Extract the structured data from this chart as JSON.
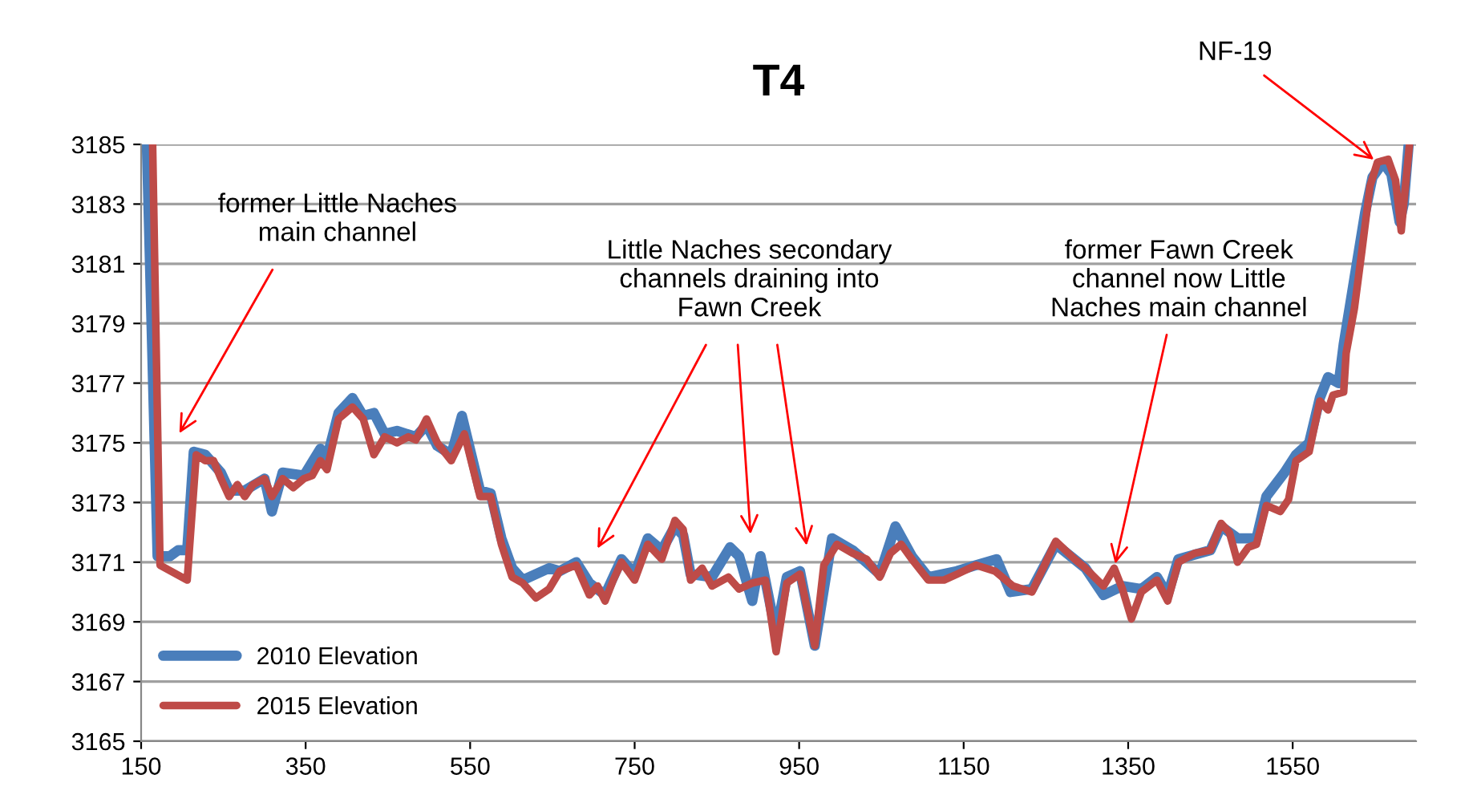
{
  "chart_data": {
    "type": "line",
    "title": "T4",
    "series": [
      {
        "name": "2010 Elevation",
        "color": "#4a7ebb",
        "x": [
          157,
          170,
          185,
          195,
          206,
          214,
          228,
          247,
          257,
          276,
          300,
          309,
          322,
          348,
          368,
          376,
          390,
          407,
          420,
          433,
          446,
          461,
          484,
          497,
          510,
          527,
          540,
          562,
          575,
          588,
          601,
          614,
          646,
          659,
          679,
          695,
          714,
          734,
          750,
          766,
          783,
          799,
          809,
          818,
          844,
          866,
          877,
          893,
          903,
          922,
          935,
          951,
          969,
          990,
          1015,
          1048,
          1067,
          1087,
          1107,
          1142,
          1165,
          1190,
          1207,
          1233,
          1262,
          1298,
          1320,
          1343,
          1366,
          1385,
          1398,
          1411,
          1450,
          1463,
          1483,
          1506,
          1518,
          1540,
          1554,
          1570,
          1583,
          1593,
          1606,
          1612,
          1625,
          1638,
          1647,
          1660,
          1670,
          1680,
          1685,
          1691
        ],
        "values": [
          3185,
          3171.2,
          3171.2,
          3171.4,
          3171.4,
          3174.7,
          3174.6,
          3174.0,
          3173.4,
          3173.4,
          3173.8,
          3172.7,
          3174.0,
          3173.9,
          3174.8,
          3174.5,
          3176.0,
          3176.5,
          3175.9,
          3176.0,
          3175.3,
          3175.4,
          3175.2,
          3175.6,
          3174.9,
          3174.6,
          3175.9,
          3173.4,
          3173.3,
          3171.8,
          3170.8,
          3170.4,
          3170.8,
          3170.7,
          3171.0,
          3170.3,
          3169.9,
          3171.1,
          3170.6,
          3171.8,
          3171.4,
          3172.2,
          3171.9,
          3170.6,
          3170.5,
          3171.5,
          3171.2,
          3169.7,
          3171.2,
          3168.6,
          3170.5,
          3170.7,
          3168.2,
          3171.8,
          3171.4,
          3170.6,
          3172.2,
          3171.2,
          3170.5,
          3170.7,
          3170.9,
          3171.1,
          3170.0,
          3170.1,
          3171.6,
          3170.8,
          3169.9,
          3170.2,
          3170.1,
          3170.5,
          3169.9,
          3171.1,
          3171.4,
          3172.2,
          3171.8,
          3171.8,
          3173.2,
          3174.0,
          3174.6,
          3175.0,
          3176.5,
          3177.2,
          3177.0,
          3178.3,
          3180.5,
          3182.7,
          3183.9,
          3184.4,
          3184.0,
          3182.4,
          3183.0,
          3185.0
        ]
      },
      {
        "name": "2015 Elevation",
        "color": "#be4b48",
        "x": [
          164,
          173,
          206,
          217,
          228,
          238,
          247,
          257,
          267,
          276,
          286,
          300,
          309,
          322,
          335,
          348,
          358,
          368,
          376,
          390,
          407,
          420,
          433,
          446,
          461,
          475,
          484,
          497,
          510,
          527,
          543,
          562,
          575,
          588,
          601,
          614,
          630,
          646,
          659,
          679,
          695,
          705,
          714,
          724,
          734,
          750,
          766,
          783,
          799,
          809,
          818,
          832,
          844,
          864,
          877,
          893,
          909,
          922,
          935,
          951,
          969,
          980,
          996,
          1015,
          1032,
          1048,
          1061,
          1074,
          1087,
          1107,
          1126,
          1142,
          1165,
          1188,
          1210,
          1233,
          1262,
          1285,
          1298,
          1320,
          1333,
          1343,
          1354,
          1366,
          1385,
          1398,
          1411,
          1431,
          1450,
          1463,
          1473,
          1483,
          1496,
          1506,
          1518,
          1535,
          1545,
          1554,
          1570,
          1583,
          1593,
          1599,
          1612,
          1615,
          1625,
          1634,
          1644,
          1653,
          1666,
          1675,
          1682,
          1685,
          1692
        ],
        "values": [
          3185,
          3170.9,
          3170.4,
          3174.6,
          3174.4,
          3174.4,
          3173.8,
          3173.2,
          3173.6,
          3173.2,
          3173.6,
          3173.8,
          3173.2,
          3173.8,
          3173.5,
          3173.8,
          3173.9,
          3174.4,
          3174.1,
          3175.8,
          3176.2,
          3175.8,
          3174.6,
          3175.2,
          3175.0,
          3175.2,
          3175.1,
          3175.8,
          3175.0,
          3174.4,
          3175.3,
          3173.2,
          3173.2,
          3171.6,
          3170.5,
          3170.3,
          3169.8,
          3170.1,
          3170.7,
          3170.9,
          3169.9,
          3170.2,
          3169.7,
          3170.4,
          3171.0,
          3170.4,
          3171.6,
          3171.1,
          3172.4,
          3172.1,
          3170.4,
          3170.8,
          3170.2,
          3170.5,
          3170.1,
          3170.3,
          3170.4,
          3168.0,
          3170.3,
          3170.6,
          3168.2,
          3170.9,
          3171.6,
          3171.3,
          3171.1,
          3170.5,
          3171.3,
          3171.6,
          3171.1,
          3170.4,
          3170.4,
          3170.6,
          3170.9,
          3170.7,
          3170.2,
          3170.0,
          3171.7,
          3171.1,
          3170.8,
          3170.2,
          3170.8,
          3170.1,
          3169.1,
          3170.0,
          3170.4,
          3169.7,
          3171.0,
          3171.3,
          3171.4,
          3172.3,
          3172.0,
          3171.0,
          3171.5,
          3171.6,
          3172.9,
          3172.7,
          3173.1,
          3174.4,
          3174.7,
          3176.4,
          3176.1,
          3176.6,
          3176.7,
          3178.0,
          3179.5,
          3181.4,
          3183.6,
          3184.4,
          3184.5,
          3183.8,
          3182.1,
          3183.0,
          3185.0
        ]
      }
    ],
    "annotations": [
      "former Little Naches\nmain channel",
      "Little Naches secondary\nchannels draining into\nFawn Creek",
      {
        "text": "former Fawn Creek\nchannel now Little\nNaches main channel",
        "x": 1333,
        "y": 3170.8
      },
      {
        "text": "NF-19",
        "x": 1653,
        "y": 3184.4
      }
    ],
    "xlim": [
      150,
      1700
    ],
    "xticks": [
      150,
      350,
      550,
      750,
      950,
      1150,
      1350,
      1550
    ],
    "ylim": [
      3165,
      3185
    ],
    "yticks": [
      3165,
      3167,
      3169,
      3171,
      3173,
      3175,
      3177,
      3179,
      3181,
      3183,
      3185
    ],
    "grid": "y",
    "legend": "bottom left",
    "marker": "none",
    "line_style": "solid"
  }
}
